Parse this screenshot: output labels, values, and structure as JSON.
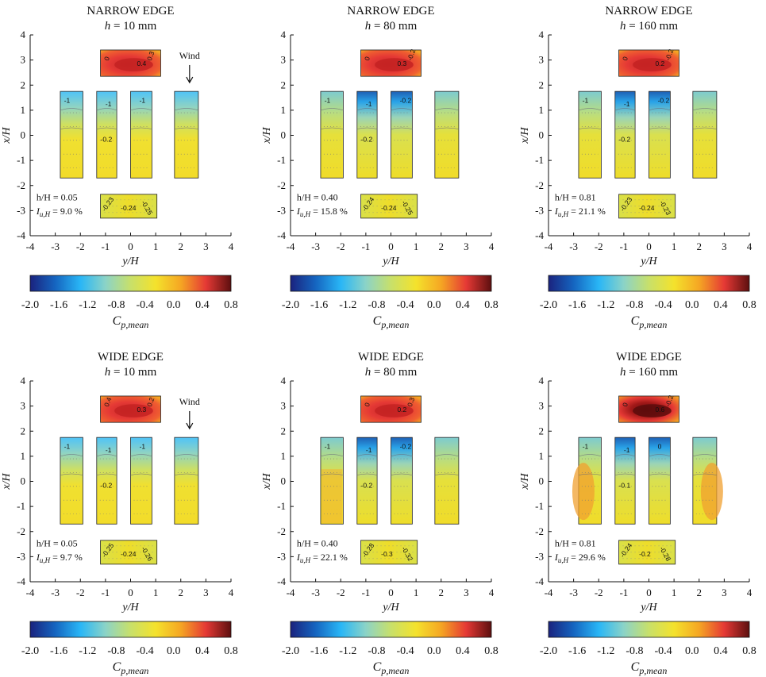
{
  "chart_data": [
    {
      "type": "contour",
      "title": "NARROW EDGE",
      "subtitle_var": "h",
      "subtitle_val": "= 10 mm",
      "xlabel": "y/H",
      "ylabel": "x/H",
      "xlim": [
        -4,
        4
      ],
      "ylim": [
        -4,
        4
      ],
      "xticks": [
        "-4",
        "-3",
        "-2",
        "-1",
        "0",
        "1",
        "2",
        "3",
        "4"
      ],
      "yticks": [
        "4",
        "3",
        "2",
        "1",
        "0",
        "-1",
        "-2",
        "-3",
        "-4"
      ],
      "wind_label": "Wind",
      "stats": {
        "h_ratio": "h/H = 0.05",
        "Iu_label": "I",
        "Iu_sub": "u,H",
        "Iu_value": "= 9.0 %"
      },
      "roof_labels": [
        "0",
        "0.4",
        "0.3"
      ],
      "bar_labels": [
        "-1",
        "-1",
        "-1",
        "-0.2"
      ],
      "windward_labels": [
        "-0.23",
        "-0.24",
        "-0.25"
      ]
    },
    {
      "type": "contour",
      "title": "NARROW EDGE",
      "subtitle_var": "h",
      "subtitle_val": "= 80 mm",
      "xlabel": "y/H",
      "ylabel": "x/H",
      "xlim": [
        -4,
        4
      ],
      "ylim": [
        -4,
        4
      ],
      "xticks": [
        "-4",
        "-3",
        "-2",
        "-1",
        "0",
        "1",
        "2",
        "3",
        "4"
      ],
      "yticks": [
        "4",
        "3",
        "2",
        "1",
        "0",
        "-1",
        "-2",
        "-3",
        "-4"
      ],
      "wind_label": "",
      "stats": {
        "h_ratio": "h/H = 0.40",
        "Iu_label": "I",
        "Iu_sub": "u,H",
        "Iu_value": "= 15.8 %"
      },
      "roof_labels": [
        "0",
        "0.3",
        "-0.2"
      ],
      "bar_labels": [
        "-1",
        "-1",
        "-0.2",
        "-0.2"
      ],
      "windward_labels": [
        "-0.24",
        "-0.24",
        "-0.25"
      ]
    },
    {
      "type": "contour",
      "title": "NARROW EDGE",
      "subtitle_var": "h",
      "subtitle_val": "= 160 mm",
      "xlabel": "y/H",
      "ylabel": "x/H",
      "xlim": [
        -4,
        4
      ],
      "ylim": [
        -4,
        4
      ],
      "xticks": [
        "-4",
        "-3",
        "-2",
        "-1",
        "0",
        "1",
        "2",
        "3",
        "4"
      ],
      "yticks": [
        "4",
        "3",
        "2",
        "1",
        "0",
        "-1",
        "-2",
        "-3",
        "-4"
      ],
      "wind_label": "",
      "stats": {
        "h_ratio": "h/H = 0.81",
        "Iu_label": "I",
        "Iu_sub": "u,H",
        "Iu_value": "= 21.1 %"
      },
      "roof_labels": [
        "0",
        "0.2",
        "-0.2"
      ],
      "bar_labels": [
        "-1",
        "-1",
        "-0.2",
        "-0.2"
      ],
      "windward_labels": [
        "-0.23",
        "-0.24",
        "-0.23"
      ]
    },
    {
      "type": "contour",
      "title": "WIDE EDGE",
      "subtitle_var": "h",
      "subtitle_val": "= 10 mm",
      "xlabel": "y/H",
      "ylabel": "x/H",
      "xlim": [
        -4,
        4
      ],
      "ylim": [
        -4,
        4
      ],
      "xticks": [
        "-4",
        "-3",
        "-2",
        "-1",
        "0",
        "1",
        "2",
        "3",
        "4"
      ],
      "yticks": [
        "4",
        "3",
        "2",
        "1",
        "0",
        "-1",
        "-2",
        "-3",
        "-4"
      ],
      "wind_label": "Wind",
      "stats": {
        "h_ratio": "h/H = 0.05",
        "Iu_label": "I",
        "Iu_sub": "u,H",
        "Iu_value": "= 9.7 %"
      },
      "roof_labels": [
        "0.4",
        "0.3",
        "0.2"
      ],
      "bar_labels": [
        "-1",
        "-1",
        "-1",
        "-0.2"
      ],
      "windward_labels": [
        "-0.25",
        "-0.24",
        "-0.26"
      ]
    },
    {
      "type": "contour",
      "title": "WIDE EDGE",
      "subtitle_var": "h",
      "subtitle_val": "= 80 mm",
      "xlabel": "y/H",
      "ylabel": "x/H",
      "xlim": [
        -4,
        4
      ],
      "ylim": [
        -4,
        4
      ],
      "xticks": [
        "-4",
        "-3",
        "-2",
        "-1",
        "0",
        "1",
        "2",
        "3",
        "4"
      ],
      "yticks": [
        "4",
        "3",
        "2",
        "1",
        "0",
        "-1",
        "-2",
        "-3",
        "-4"
      ],
      "wind_label": "",
      "stats": {
        "h_ratio": "h/H = 0.40",
        "Iu_label": "I",
        "Iu_sub": "u,H",
        "Iu_value": "= 22.1 %"
      },
      "roof_labels": [
        "0",
        "0.2",
        "0.3"
      ],
      "bar_labels": [
        "-1",
        "-1",
        "-0.2",
        "-0.2"
      ],
      "windward_labels": [
        "-0.28",
        "-0.3",
        "-0.32"
      ]
    },
    {
      "type": "contour",
      "title": "WIDE EDGE",
      "subtitle_var": "h",
      "subtitle_val": "= 160 mm",
      "xlabel": "y/H",
      "ylabel": "x/H",
      "xlim": [
        -4,
        4
      ],
      "ylim": [
        -4,
        4
      ],
      "xticks": [
        "-4",
        "-3",
        "-2",
        "-1",
        "0",
        "1",
        "2",
        "3",
        "4"
      ],
      "yticks": [
        "4",
        "3",
        "2",
        "1",
        "0",
        "-1",
        "-2",
        "-3",
        "-4"
      ],
      "wind_label": "",
      "stats": {
        "h_ratio": "h/H = 0.81",
        "Iu_label": "I",
        "Iu_sub": "u,H",
        "Iu_value": "= 29.6 %"
      },
      "roof_labels": [
        "0",
        "0.6",
        "-0.2"
      ],
      "bar_labels": [
        "-1",
        "-1",
        "0",
        "-0.1"
      ],
      "windward_labels": [
        "-0.24",
        "-0.2",
        "-0.28"
      ]
    }
  ],
  "colorbar": {
    "range": [
      -2.0,
      0.8
    ],
    "ticks": [
      "-2.0",
      "-1.6",
      "-1.2",
      "-0.8",
      "-0.4",
      "0.0",
      "0.4",
      "0.8"
    ],
    "label_main": "C",
    "label_sub": "p,mean",
    "colormap": [
      "#1a237e",
      "#1565c0",
      "#29b6f6",
      "#8bd3c7",
      "#c8e06a",
      "#f4e22c",
      "#f5a623",
      "#e53935",
      "#5d0f0f"
    ]
  }
}
